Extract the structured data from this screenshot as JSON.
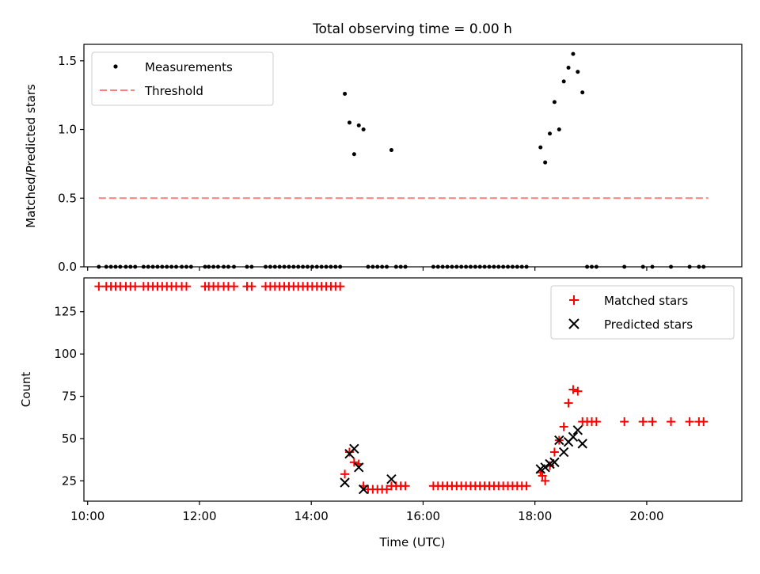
{
  "figure": {
    "title": "Total observing time = 0.00 h"
  },
  "chart_data": [
    {
      "type": "scatter",
      "title": "Total observing time = 0.00 h",
      "xlabel": "",
      "ylabel": "Matched/Predicted stars",
      "xlim": [
        "09:56",
        "21:42"
      ],
      "ylim": [
        0,
        1.62
      ],
      "yticks": [
        0.0,
        0.5,
        1.0,
        1.5
      ],
      "ytick_labels": [
        "0.0",
        "0.5",
        "1.0",
        "1.5"
      ],
      "grid": false,
      "legend": "upper-left",
      "series": [
        {
          "name": "Measurements",
          "color": "#000000",
          "marker": "dot",
          "points": [
            [
              "10:12",
              0
            ],
            [
              "10:20",
              0
            ],
            [
              "10:25",
              0
            ],
            [
              "10:30",
              0
            ],
            [
              "10:35",
              0
            ],
            [
              "10:41",
              0
            ],
            [
              "10:46",
              0
            ],
            [
              "10:51",
              0
            ],
            [
              "11:00",
              0
            ],
            [
              "11:05",
              0
            ],
            [
              "11:10",
              0
            ],
            [
              "11:15",
              0
            ],
            [
              "11:20",
              0
            ],
            [
              "11:25",
              0
            ],
            [
              "11:30",
              0
            ],
            [
              "11:35",
              0
            ],
            [
              "11:41",
              0
            ],
            [
              "11:46",
              0
            ],
            [
              "11:51",
              0
            ],
            [
              "12:06",
              0
            ],
            [
              "12:10",
              0
            ],
            [
              "12:15",
              0
            ],
            [
              "12:20",
              0
            ],
            [
              "12:26",
              0
            ],
            [
              "12:31",
              0
            ],
            [
              "12:37",
              0
            ],
            [
              "12:51",
              0
            ],
            [
              "12:56",
              0
            ],
            [
              "13:11",
              0
            ],
            [
              "13:16",
              0
            ],
            [
              "13:21",
              0
            ],
            [
              "13:26",
              0
            ],
            [
              "13:31",
              0
            ],
            [
              "13:36",
              0
            ],
            [
              "13:41",
              0
            ],
            [
              "13:46",
              0
            ],
            [
              "13:51",
              0
            ],
            [
              "13:56",
              0
            ],
            [
              "14:01",
              0
            ],
            [
              "14:06",
              0
            ],
            [
              "14:11",
              0
            ],
            [
              "14:16",
              0
            ],
            [
              "14:21",
              0
            ],
            [
              "14:26",
              0
            ],
            [
              "14:31",
              0
            ],
            [
              "14:36",
              1.26
            ],
            [
              "14:41",
              1.05
            ],
            [
              "14:46",
              0.82
            ],
            [
              "14:51",
              1.03
            ],
            [
              "14:56",
              1.0
            ],
            [
              "15:01",
              0
            ],
            [
              "15:06",
              0
            ],
            [
              "15:11",
              0
            ],
            [
              "15:16",
              0
            ],
            [
              "15:21",
              0
            ],
            [
              "15:26",
              0.85
            ],
            [
              "15:31",
              0
            ],
            [
              "15:36",
              0
            ],
            [
              "15:41",
              0
            ],
            [
              "16:11",
              0
            ],
            [
              "16:16",
              0
            ],
            [
              "16:21",
              0
            ],
            [
              "16:26",
              0
            ],
            [
              "16:31",
              0
            ],
            [
              "16:36",
              0
            ],
            [
              "16:41",
              0
            ],
            [
              "16:46",
              0
            ],
            [
              "16:51",
              0
            ],
            [
              "16:56",
              0
            ],
            [
              "17:01",
              0
            ],
            [
              "17:06",
              0
            ],
            [
              "17:11",
              0
            ],
            [
              "17:16",
              0
            ],
            [
              "17:21",
              0
            ],
            [
              "17:26",
              0
            ],
            [
              "17:31",
              0
            ],
            [
              "17:36",
              0
            ],
            [
              "17:41",
              0
            ],
            [
              "17:46",
              0
            ],
            [
              "17:51",
              0
            ],
            [
              "18:06",
              0.87
            ],
            [
              "18:11",
              0.76
            ],
            [
              "18:16",
              0.97
            ],
            [
              "18:21",
              1.2
            ],
            [
              "18:26",
              1.0
            ],
            [
              "18:31",
              1.35
            ],
            [
              "18:36",
              1.45
            ],
            [
              "18:41",
              1.55
            ],
            [
              "18:46",
              1.42
            ],
            [
              "18:51",
              1.27
            ],
            [
              "18:56",
              0
            ],
            [
              "19:01",
              0
            ],
            [
              "19:06",
              0
            ],
            [
              "19:36",
              0
            ],
            [
              "19:56",
              0
            ],
            [
              "20:06",
              0
            ],
            [
              "20:26",
              0
            ],
            [
              "20:46",
              0
            ],
            [
              "20:56",
              0
            ],
            [
              "21:01",
              0
            ]
          ]
        },
        {
          "name": "Threshold",
          "color": "#ff7f7f",
          "line": "dashed",
          "points": [
            [
              "10:12",
              0.5
            ],
            [
              "21:06",
              0.5
            ]
          ]
        }
      ]
    },
    {
      "type": "scatter",
      "title": "",
      "xlabel": "Time (UTC)",
      "ylabel": "Count",
      "xlim": [
        "09:56",
        "21:42"
      ],
      "ylim": [
        13,
        145
      ],
      "yticks": [
        25,
        50,
        75,
        100,
        125
      ],
      "ytick_labels": [
        "25",
        "50",
        "75",
        "100",
        "125"
      ],
      "xticks": [
        "10:00",
        "12:00",
        "14:00",
        "16:00",
        "18:00",
        "20:00"
      ],
      "xtick_labels": [
        "10:00",
        "12:00",
        "14:00",
        "16:00",
        "18:00",
        "20:00"
      ],
      "grid": false,
      "legend": "upper-right",
      "series": [
        {
          "name": "Matched stars",
          "color": "#ff0000",
          "marker": "plus",
          "points": [
            [
              "10:12",
              140
            ],
            [
              "10:20",
              140
            ],
            [
              "10:25",
              140
            ],
            [
              "10:30",
              140
            ],
            [
              "10:35",
              140
            ],
            [
              "10:41",
              140
            ],
            [
              "10:46",
              140
            ],
            [
              "10:51",
              140
            ],
            [
              "11:00",
              140
            ],
            [
              "11:05",
              140
            ],
            [
              "11:10",
              140
            ],
            [
              "11:15",
              140
            ],
            [
              "11:20",
              140
            ],
            [
              "11:25",
              140
            ],
            [
              "11:30",
              140
            ],
            [
              "11:35",
              140
            ],
            [
              "11:41",
              140
            ],
            [
              "11:46",
              140
            ],
            [
              "12:06",
              140
            ],
            [
              "12:10",
              140
            ],
            [
              "12:15",
              140
            ],
            [
              "12:20",
              140
            ],
            [
              "12:26",
              140
            ],
            [
              "12:31",
              140
            ],
            [
              "12:37",
              140
            ],
            [
              "12:51",
              140
            ],
            [
              "12:56",
              140
            ],
            [
              "13:11",
              140
            ],
            [
              "13:16",
              140
            ],
            [
              "13:21",
              140
            ],
            [
              "13:26",
              140
            ],
            [
              "13:31",
              140
            ],
            [
              "13:36",
              140
            ],
            [
              "13:41",
              140
            ],
            [
              "13:46",
              140
            ],
            [
              "13:51",
              140
            ],
            [
              "13:56",
              140
            ],
            [
              "14:01",
              140
            ],
            [
              "14:06",
              140
            ],
            [
              "14:11",
              140
            ],
            [
              "14:16",
              140
            ],
            [
              "14:21",
              140
            ],
            [
              "14:26",
              140
            ],
            [
              "14:31",
              140
            ],
            [
              "14:36",
              29
            ],
            [
              "14:41",
              42
            ],
            [
              "14:46",
              36
            ],
            [
              "14:51",
              35
            ],
            [
              "14:56",
              22
            ],
            [
              "15:01",
              20
            ],
            [
              "15:06",
              20
            ],
            [
              "15:11",
              20
            ],
            [
              "15:16",
              20
            ],
            [
              "15:21",
              20
            ],
            [
              "15:26",
              22
            ],
            [
              "15:31",
              22
            ],
            [
              "15:36",
              22
            ],
            [
              "15:41",
              22
            ],
            [
              "16:11",
              22
            ],
            [
              "16:16",
              22
            ],
            [
              "16:21",
              22
            ],
            [
              "16:26",
              22
            ],
            [
              "16:31",
              22
            ],
            [
              "16:36",
              22
            ],
            [
              "16:41",
              22
            ],
            [
              "16:46",
              22
            ],
            [
              "16:51",
              22
            ],
            [
              "16:56",
              22
            ],
            [
              "17:01",
              22
            ],
            [
              "17:06",
              22
            ],
            [
              "17:11",
              22
            ],
            [
              "17:16",
              22
            ],
            [
              "17:21",
              22
            ],
            [
              "17:26",
              22
            ],
            [
              "17:31",
              22
            ],
            [
              "17:36",
              22
            ],
            [
              "17:41",
              22
            ],
            [
              "17:46",
              22
            ],
            [
              "17:51",
              22
            ],
            [
              "18:06",
              30
            ],
            [
              "18:08",
              28
            ],
            [
              "18:11",
              25
            ],
            [
              "18:16",
              34
            ],
            [
              "18:21",
              42
            ],
            [
              "18:26",
              49
            ],
            [
              "18:31",
              57
            ],
            [
              "18:36",
              71
            ],
            [
              "18:41",
              79
            ],
            [
              "18:46",
              78
            ],
            [
              "18:51",
              60
            ],
            [
              "18:56",
              60
            ],
            [
              "19:01",
              60
            ],
            [
              "19:06",
              60
            ],
            [
              "19:36",
              60
            ],
            [
              "19:56",
              60
            ],
            [
              "20:06",
              60
            ],
            [
              "20:26",
              60
            ],
            [
              "20:46",
              60
            ],
            [
              "20:56",
              60
            ],
            [
              "21:01",
              60
            ]
          ]
        },
        {
          "name": "Predicted stars",
          "color": "#000000",
          "marker": "x",
          "points": [
            [
              "14:36",
              24
            ],
            [
              "14:41",
              41
            ],
            [
              "14:46",
              44
            ],
            [
              "14:51",
              33
            ],
            [
              "14:56",
              20
            ],
            [
              "15:26",
              26
            ],
            [
              "18:06",
              32
            ],
            [
              "18:11",
              33
            ],
            [
              "18:16",
              35
            ],
            [
              "18:21",
              36
            ],
            [
              "18:26",
              49
            ],
            [
              "18:31",
              42
            ],
            [
              "18:36",
              48
            ],
            [
              "18:41",
              51
            ],
            [
              "18:46",
              55
            ],
            [
              "18:51",
              47
            ]
          ]
        }
      ]
    }
  ]
}
